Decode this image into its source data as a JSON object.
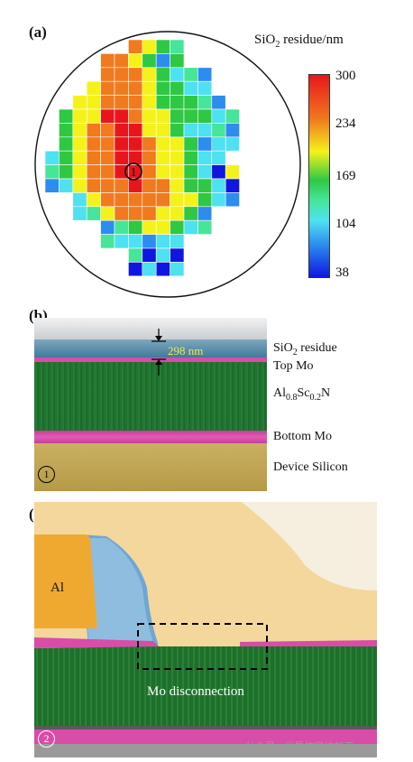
{
  "panel_a": {
    "label": "(a)",
    "colorbar_title_pre": "SiO",
    "colorbar_title_sub": "2",
    "colorbar_title_post": " residue/nm",
    "colorbar_ticks": [
      "300",
      "234",
      "169",
      "104",
      "38"
    ],
    "colors": {
      "v4": "#e8161c",
      "v3": "#f17a1f",
      "v2": "#f5f21a",
      "v1b": "#2fc844",
      "v1": "#46e59a",
      "v0": "#4ee1f1",
      "vm1": "#2d8cf0",
      "vm2": "#1016e0"
    },
    "marker1": "1",
    "marker2": "2",
    "grid_rows": [
      "......3210......",
      "....332101......",
      "....33321000....",
      "...233321100....",
      "..22333211100...",
      ".1224432211100..",
      ".1233442210000..",
      ".1233443221000..",
      "0123344322100...",
      "012334432210-2..",
      "0023334332110-..",
      "..023333322100..",
      "..0023332210....",
      "....00122100....",
      "....000000......",
      "......0-0-......",
      "......-0-0......"
    ]
  },
  "panel_b": {
    "label": "(b)",
    "thickness": "298 nm",
    "layer_sio2_pre": "SiO",
    "layer_sio2_sub": "2",
    "layer_sio2_post": " residue",
    "layer_topmo": "Top Mo",
    "layer_alscn_a": "Al",
    "layer_alscn_b": "0.8",
    "layer_alscn_c": "Sc",
    "layer_alscn_d": "0.2",
    "layer_alscn_e": "N",
    "layer_bottommo": "Bottom Mo",
    "layer_silicon": "Device Silicon",
    "marker": "1"
  },
  "panel_c": {
    "label": "(c)",
    "al_label": "Al",
    "disconnection_label": "Mo disconnection",
    "marker": "2"
  },
  "watermark": "公众号 · 半导体微纳加工"
}
